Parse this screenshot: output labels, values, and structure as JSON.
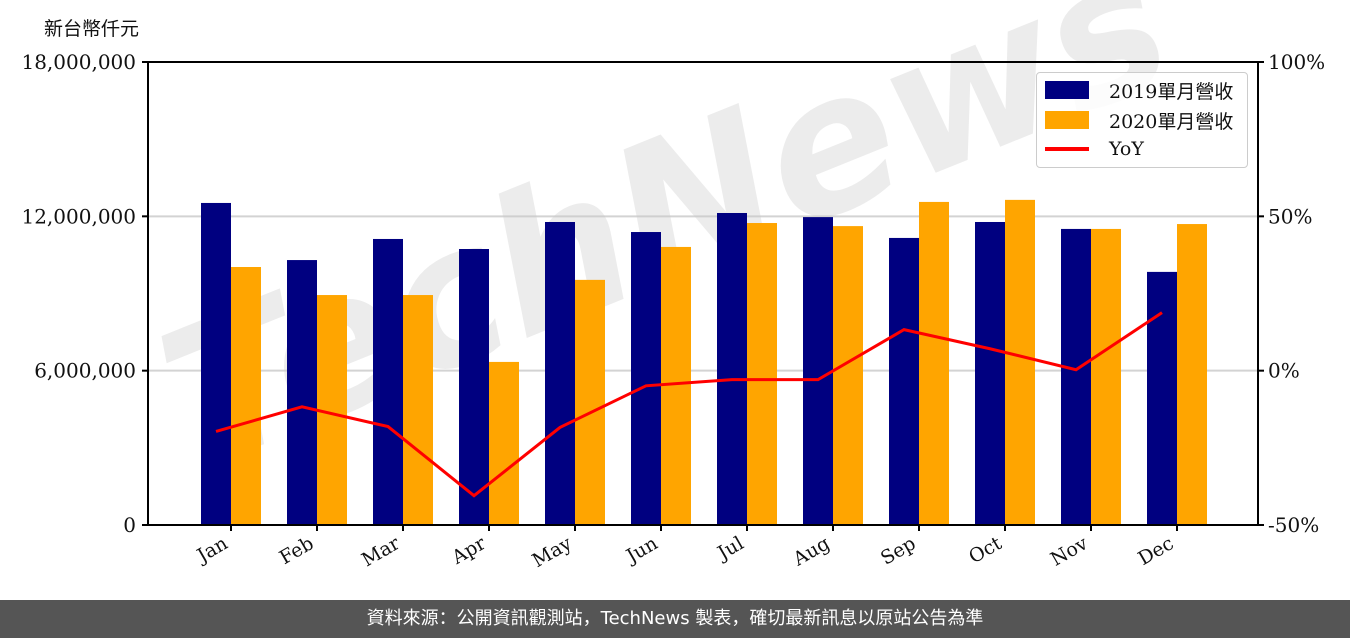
{
  "unit_label": "新台幣仟元",
  "footer": "資料來源：公開資訊觀測站，TechNews 製表，確切最新訊息以原站公告為準",
  "watermark": "TechNews",
  "colors": {
    "series_2019": "#000080",
    "series_2020": "#ffa500",
    "yoy": "#ff0000",
    "grid": "#d3d3d3",
    "footer_bg": "#555555"
  },
  "legend": [
    {
      "label": "2019單月營收",
      "type": "bar",
      "color": "#000080"
    },
    {
      "label": "2020單月營收",
      "type": "bar",
      "color": "#ffa500"
    },
    {
      "label": "YoY",
      "type": "line",
      "color": "#ff0000"
    }
  ],
  "chart_data": {
    "type": "bar",
    "title": "",
    "xlabel": "",
    "ylabel": "新台幣仟元",
    "y2label": "YoY",
    "categories": [
      "Jan",
      "Feb",
      "Mar",
      "Apr",
      "May",
      "Jun",
      "Jul",
      "Aug",
      "Sep",
      "Oct",
      "Nov",
      "Dec"
    ],
    "series": [
      {
        "name": "2019單月營收",
        "type": "bar",
        "color": "#000080",
        "values": [
          12520000,
          10300000,
          11120000,
          10730000,
          11780000,
          11390000,
          12130000,
          11970000,
          11160000,
          11780000,
          11510000,
          9840000
        ]
      },
      {
        "name": "2020單月營收",
        "type": "bar",
        "color": "#ffa500",
        "values": [
          10030000,
          8940000,
          8940000,
          6340000,
          9530000,
          10810000,
          11740000,
          11620000,
          12560000,
          12640000,
          11510000,
          11700000
        ]
      },
      {
        "name": "YoY",
        "type": "line",
        "axis": "right",
        "color": "#ff0000",
        "values": [
          -19.7,
          -11.7,
          -18.1,
          -40.5,
          -18.4,
          -4.9,
          -2.9,
          -2.9,
          13.3,
          7.1,
          0.3,
          18.8
        ]
      }
    ],
    "ylim": [
      0,
      18000000
    ],
    "yticks": [
      0,
      6000000,
      12000000,
      18000000
    ],
    "ytick_labels": [
      "0",
      "6,000,000",
      "12,000,000",
      "18,000,000"
    ],
    "y2lim": [
      -50,
      100
    ],
    "y2ticks": [
      -50,
      0,
      50,
      100
    ],
    "y2tick_labels": [
      "-50%",
      "0%",
      "50%",
      "100%"
    ],
    "grid": true,
    "legend_position": "upper right"
  }
}
